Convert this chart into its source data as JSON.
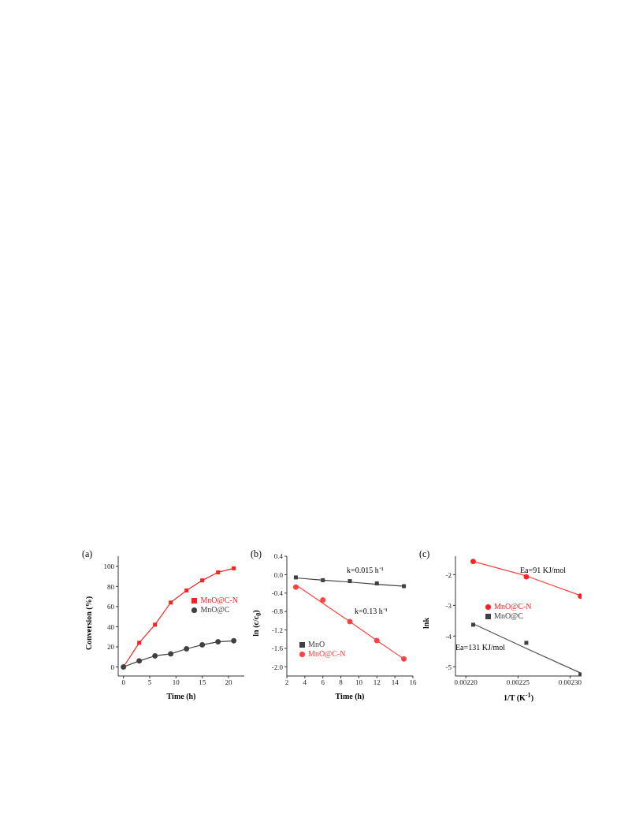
{
  "chart_data": [
    {
      "type": "line",
      "title": "(a)",
      "xlabel": "Time (h)",
      "ylabel": "Conversion (%)",
      "x": [
        0,
        3,
        6,
        9,
        12,
        15,
        18,
        21
      ],
      "xlim": [
        -1,
        23
      ],
      "xticks": [
        0,
        5,
        10,
        15,
        20
      ],
      "ylim": [
        -9,
        110
      ],
      "yticks": [
        0,
        20,
        40,
        60,
        80,
        100
      ],
      "legend": "right",
      "grid": false,
      "line_style": "solid",
      "series": [
        {
          "name": "MnO@C-N",
          "color": "#ff2020",
          "marker": "square",
          "values": [
            0,
            24,
            42,
            64,
            76,
            86,
            94,
            98
          ]
        },
        {
          "name": "MnO@C",
          "color": "#404040",
          "marker": "circle",
          "values": [
            0,
            6,
            11,
            13,
            18,
            22,
            25,
            26
          ]
        }
      ]
    },
    {
      "type": "scatter",
      "title": "(b)",
      "xlabel": "Time (h)",
      "ylabel": "ln (c/c$_{0}$)",
      "x": [
        3,
        6,
        9,
        12,
        15
      ],
      "xlim": [
        2,
        16
      ],
      "xticks": [
        2,
        4,
        6,
        8,
        10,
        12,
        14,
        16
      ],
      "ylim": [
        -2.2,
        0.4
      ],
      "yticks": [
        {
          "value": 0.4,
          "label": "0.4"
        },
        {
          "value": 0,
          "label": "0.0"
        },
        {
          "value": -0.4,
          "label": "-0.4"
        },
        {
          "value": -0.8,
          "label": "-0.8"
        },
        {
          "value": -1.2,
          "label": "-1.2"
        },
        {
          "value": -1.6,
          "label": "-1.6"
        },
        {
          "value": -2,
          "label": "-2.0"
        }
      ],
      "legend": "bottom left",
      "grid": false,
      "annotations": [
        "k=0.015 h⁻¹",
        "k=0.13 h⁻¹"
      ],
      "series": [
        {
          "name": "MnO",
          "color": "#404040",
          "marker": "square",
          "values": [
            -0.06,
            -0.12,
            -0.14,
            -0.19,
            -0.25
          ]
        },
        {
          "name": "MnO@C-N",
          "color": "#ff4040",
          "marker": "circle",
          "values": [
            -0.27,
            -0.55,
            -1.02,
            -1.43,
            -1.83
          ]
        },
        {
          "type": "line",
          "color": "#404040",
          "marker": "none",
          "values": [
            -0.07,
            -0.12,
            -0.16,
            -0.21,
            -0.25
          ]
        },
        {
          "type": "line",
          "color": "#ff4040",
          "marker": "none",
          "values": [
            -0.22,
            -0.62,
            -1.02,
            -1.43,
            -1.83
          ]
        }
      ]
    },
    {
      "type": "scatter",
      "title": "(c)",
      "xlabel": "1/T (K$^{-1}$)",
      "ylabel": "lnk",
      "x": [
        0.002207,
        0.002258,
        0.00231
      ],
      "xlim": [
        0.00219,
        0.002311
      ],
      "xticks": [
        {
          "value": 0.0022,
          "label": "0.00220"
        },
        {
          "value": 0.00225,
          "label": "0.00225"
        },
        {
          "value": 0.0023,
          "label": "0.00230"
        }
      ],
      "ylim": [
        -5.3,
        -1.4
      ],
      "yticks": [
        -5,
        -4,
        -3,
        -2
      ],
      "legend": "center",
      "grid": false,
      "annotations": [
        "Ea=91 KJ/mol",
        "Ea=131 KJ/mol"
      ],
      "series": [
        {
          "name": "MnO@C-N",
          "color": "#ff2020",
          "marker": "circle",
          "values": [
            -1.57,
            -2.07,
            -2.7
          ]
        },
        {
          "name": "MnO@C",
          "color": "#404040",
          "marker": "square",
          "values": [
            -3.63,
            -4.22,
            -5.25
          ]
        },
        {
          "type": "line",
          "color": "#ff4040",
          "marker": "none",
          "values": [
            -1.57,
            -2.04,
            -2.68
          ]
        },
        {
          "type": "line",
          "color": "#505050",
          "marker": "none",
          "values": [
            -3.6,
            -4.4,
            -5.2
          ]
        }
      ]
    }
  ]
}
